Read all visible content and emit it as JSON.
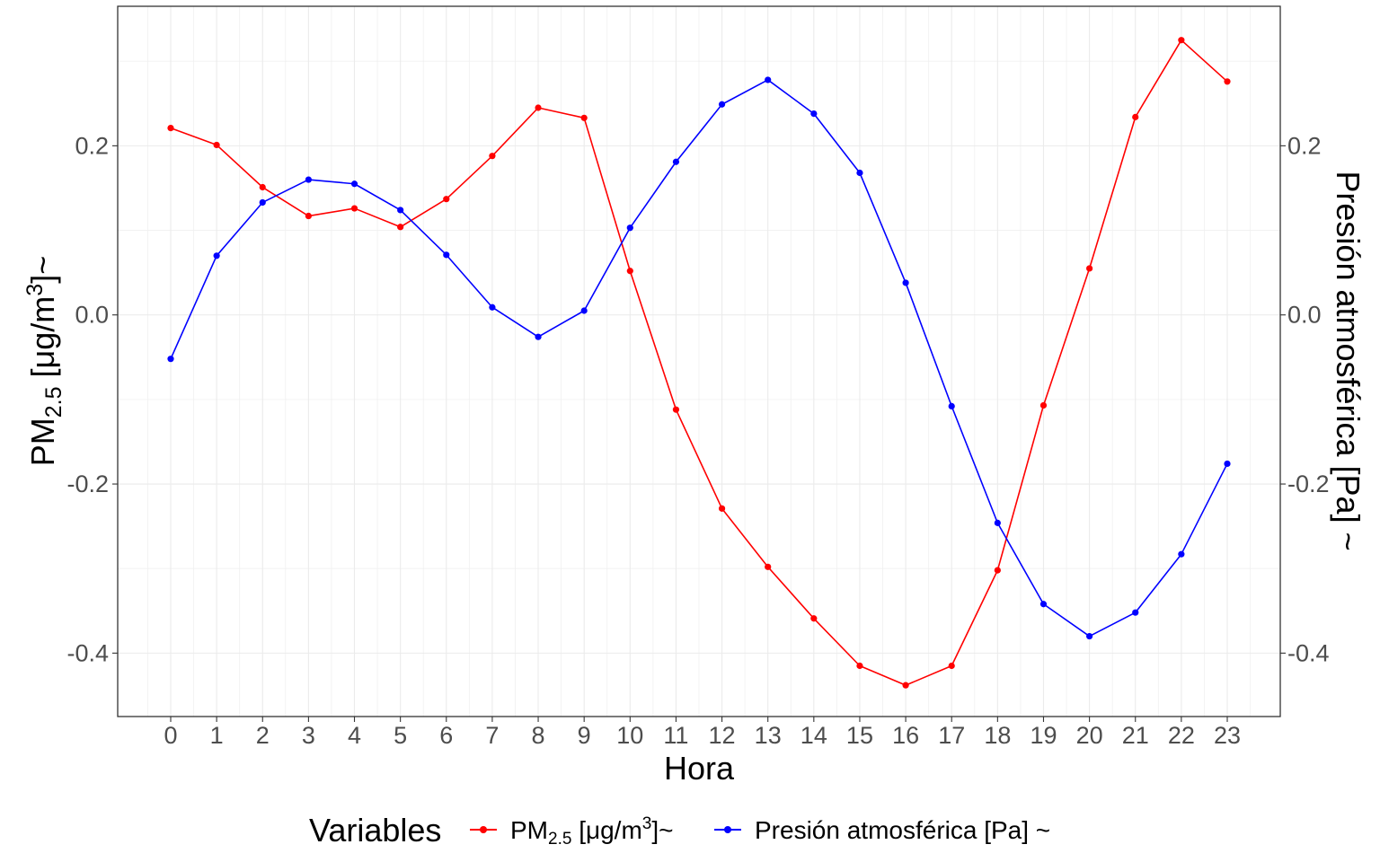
{
  "chart_data": {
    "type": "line",
    "x": [
      0,
      1,
      2,
      3,
      4,
      5,
      6,
      7,
      8,
      9,
      10,
      11,
      12,
      13,
      14,
      15,
      16,
      17,
      18,
      19,
      20,
      21,
      22,
      23
    ],
    "xlabel": "Hora",
    "ylabel_left": {
      "base": "PM",
      "sub": "2.5",
      "mid": " [μg/m",
      "sup": "3",
      "end": "]~"
    },
    "ylabel_right": "Presión atmosférica [Pa] ~",
    "ylim": [
      -0.475,
      0.365
    ],
    "yticks": [
      -0.4,
      -0.2,
      0.0,
      0.2
    ],
    "ytick_labels": [
      "-0.4",
      "-0.2",
      "0.0",
      "0.2"
    ],
    "grid": true,
    "legend": {
      "position": "bottom",
      "title": "Variables"
    },
    "series": [
      {
        "key": "pm",
        "name": "PM2.5 [μg/m3]~",
        "name_parts": {
          "base": "PM",
          "sub": "2.5",
          "mid": " [μg/m",
          "sup": "3",
          "end": "]~"
        },
        "color": "#ff0000",
        "values": [
          0.221,
          0.201,
          0.151,
          0.117,
          0.126,
          0.104,
          0.137,
          0.188,
          0.245,
          0.233,
          0.052,
          -0.112,
          -0.229,
          -0.298,
          -0.359,
          -0.415,
          -0.438,
          -0.415,
          -0.302,
          -0.107,
          0.055,
          0.234,
          0.325,
          0.276
        ]
      },
      {
        "key": "pres",
        "name": "Presión atmosférica [Pa] ~",
        "color": "#0000ff",
        "values": [
          -0.052,
          0.07,
          0.133,
          0.16,
          0.155,
          0.124,
          0.071,
          0.009,
          -0.026,
          0.005,
          0.103,
          0.181,
          0.249,
          0.278,
          0.238,
          0.168,
          0.038,
          -0.108,
          -0.246,
          -0.342,
          -0.38,
          -0.352,
          -0.283,
          -0.176
        ]
      }
    ]
  }
}
